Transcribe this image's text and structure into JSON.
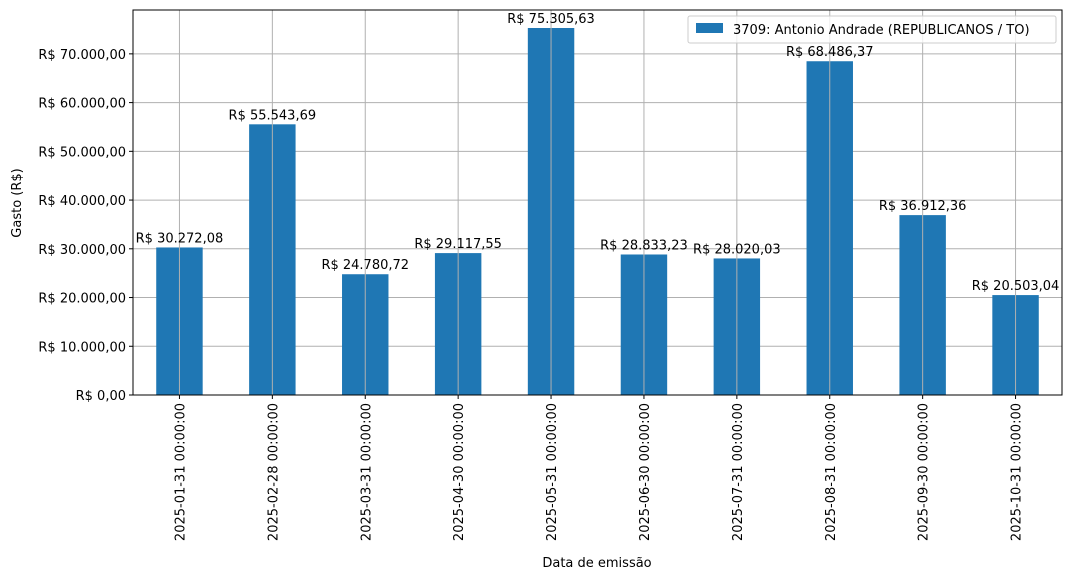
{
  "chart_data": {
    "type": "bar",
    "title": "",
    "xlabel": "Data de emissão",
    "ylabel": "Gasto (R$)",
    "categories": [
      "2025-01-31 00:00:00",
      "2025-02-28 00:00:00",
      "2025-03-31 00:00:00",
      "2025-04-30 00:00:00",
      "2025-05-31 00:00:00",
      "2025-06-30 00:00:00",
      "2025-07-31 00:00:00",
      "2025-08-31 00:00:00",
      "2025-09-30 00:00:00",
      "2025-10-31 00:00:00"
    ],
    "series": [
      {
        "name": "3709: Antonio Andrade (REPUBLICANOS / TO)",
        "color": "#1f77b4",
        "values": [
          30272.08,
          55543.69,
          24780.72,
          29117.55,
          75305.63,
          28833.23,
          28020.03,
          68486.37,
          36912.36,
          20503.04
        ],
        "labels": [
          "R$ 30.272,08",
          "R$ 55.543,69",
          "R$ 24.780,72",
          "R$ 29.117,55",
          "R$ 75.305,63",
          "R$ 28.833,23",
          "R$ 28.020,03",
          "R$ 68.486,37",
          "R$ 36.912,36",
          "R$ 20.503,04"
        ]
      }
    ],
    "ylim": [
      0,
      79000
    ],
    "yticks": [
      0,
      10000,
      20000,
      30000,
      40000,
      50000,
      60000,
      70000
    ],
    "ytick_labels": [
      "R$ 0,00",
      "R$ 10.000,00",
      "R$ 20.000,00",
      "R$ 30.000,00",
      "R$ 40.000,00",
      "R$ 50.000,00",
      "R$ 60.000,00",
      "R$ 70.000,00"
    ],
    "grid": true,
    "legend_position": "top-right"
  }
}
